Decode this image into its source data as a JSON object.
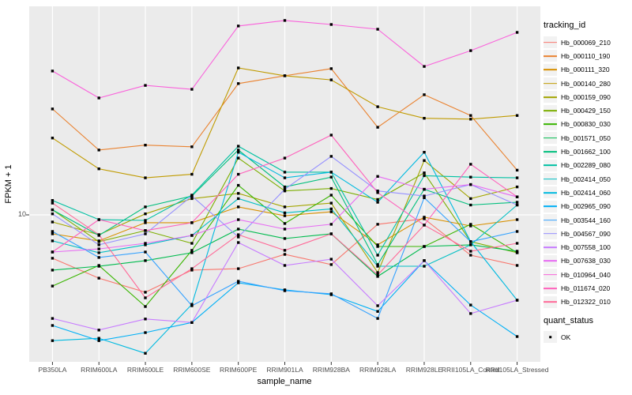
{
  "figure": {
    "background": "#FFFFFF",
    "panel_background": "#EBEBEB",
    "grid_color": "#FFFFFF",
    "point_color": "#000000",
    "tick_text_color": "#4D4D4D"
  },
  "chart_data": {
    "type": "line",
    "xlabel": "sample_name",
    "ylabel": "FPKM + 1",
    "y_axis": {
      "scale": "log10",
      "tick_labels": [
        "10"
      ],
      "tick_values": [
        10
      ],
      "ylim": [
        2.4,
        75
      ]
    },
    "categories": [
      "PB350LA",
      "RRIM600LA",
      "RRIM600LE",
      "RRIM600SE",
      "RRIM600PE",
      "RRIM901LA",
      "RRIM928BA",
      "RRIM928LA",
      "RRIM928LE",
      "RRII105LA_Control",
      "RRII105LA_Stressed"
    ],
    "series": [
      {
        "name": "Hb_000069_210",
        "color": "#F8766D",
        "values": [
          6.58,
          5.43,
          4.74,
          5.87,
          5.95,
          6.83,
          6.19,
          9.13,
          9.63,
          6.78,
          6.14
        ]
      },
      {
        "name": "Hb_000110_190",
        "color": "#EA8331",
        "values": [
          27.8,
          18.7,
          19.6,
          19.3,
          35.5,
          38.3,
          41.0,
          23.3,
          31.9,
          26.1,
          15.4
        ]
      },
      {
        "name": "Hb_000111_320",
        "color": "#D89000",
        "values": [
          8.33,
          7.78,
          9.27,
          9.27,
          10.8,
          9.92,
          10.3,
          7.49,
          9.78,
          8.99,
          9.55
        ]
      },
      {
        "name": "Hb_000140_280",
        "color": "#C09B00",
        "values": [
          21.0,
          15.6,
          14.3,
          14.8,
          41.3,
          38.3,
          36.8,
          28.4,
          25.4,
          25.2,
          26.1
        ]
      },
      {
        "name": "Hb_000159_090",
        "color": "#A3A500",
        "values": [
          9.34,
          8.26,
          10.1,
          11.7,
          12.3,
          10.8,
          11.2,
          5.73,
          16.9,
          11.7,
          13.1
        ]
      },
      {
        "name": "Hb_000429_150",
        "color": "#7CAE00",
        "values": [
          10.5,
          7.72,
          8.59,
          7.6,
          17.3,
          12.6,
          12.9,
          11.6,
          15.0,
          7.72,
          6.94
        ]
      },
      {
        "name": "Hb_000830_030",
        "color": "#39B600",
        "values": [
          5.03,
          6.14,
          4.13,
          7.1,
          13.3,
          9.2,
          12.1,
          7.37,
          7.37,
          9.13,
          6.94
        ]
      },
      {
        "name": "Hb_001571_050",
        "color": "#00BB4E",
        "values": [
          5.87,
          6.09,
          6.43,
          6.94,
          8.72,
          7.96,
          8.33,
          5.52,
          7.37,
          7.49,
          7.04
        ]
      },
      {
        "name": "Hb_001662_100",
        "color": "#00BF7D",
        "values": [
          10.5,
          8.2,
          10.8,
          12.0,
          18.7,
          13.1,
          14.4,
          6.19,
          12.8,
          11.0,
          11.3
        ]
      },
      {
        "name": "Hb_002289_080",
        "color": "#00C1A3",
        "values": [
          11.5,
          9.55,
          9.48,
          12.1,
          19.4,
          15.1,
          15.1,
          6.78,
          14.6,
          14.4,
          14.3
        ]
      },
      {
        "name": "Hb_002414_050",
        "color": "#00BFC4",
        "values": [
          7.78,
          6.94,
          7.49,
          8.2,
          11.7,
          10.2,
          10.6,
          6.09,
          6.09,
          7.49,
          11.0
        ]
      },
      {
        "name": "Hb_002414_060",
        "color": "#00BAE0",
        "values": [
          2.97,
          3.04,
          2.63,
          4.22,
          18.3,
          14.3,
          15.1,
          11.3,
          18.3,
          7.72,
          4.39
        ]
      },
      {
        "name": "Hb_002965_090",
        "color": "#00B0F6",
        "values": [
          3.44,
          2.97,
          3.21,
          3.54,
          5.19,
          4.85,
          4.63,
          3.94,
          6.43,
          4.19,
          3.09
        ]
      },
      {
        "name": "Hb_003544_160",
        "color": "#35A2FF",
        "values": [
          8.52,
          6.63,
          6.99,
          4.16,
          5.27,
          4.81,
          4.67,
          3.68,
          11.8,
          7.72,
          8.52
        ]
      },
      {
        "name": "Hb_004567_090",
        "color": "#9590FF",
        "values": [
          10.1,
          7.49,
          8.33,
          12.0,
          8.08,
          12.8,
          17.6,
          12.6,
          12.0,
          13.4,
          11.0
        ]
      },
      {
        "name": "Hb_007558_100",
        "color": "#C77CFF",
        "values": [
          3.68,
          3.29,
          3.66,
          3.54,
          7.66,
          6.14,
          6.52,
          4.16,
          6.43,
          3.86,
          4.39
        ]
      },
      {
        "name": "Hb_007638_030",
        "color": "#E76BF3",
        "values": [
          6.99,
          7.2,
          7.6,
          8.2,
          9.55,
          8.72,
          9.13,
          14.5,
          12.8,
          13.4,
          11.9
        ]
      },
      {
        "name": "Hb_010964_040",
        "color": "#FA62DB",
        "values": [
          40.1,
          30.9,
          34.9,
          33.6,
          61.9,
          65.3,
          62.8,
          60.0,
          41.9,
          48.8,
          58.2
        ]
      },
      {
        "name": "Hb_011674_020",
        "color": "#FF62BC",
        "values": [
          6.99,
          9.55,
          8.59,
          9.27,
          14.8,
          17.3,
          21.6,
          12.4,
          9.06,
          16.3,
          11.9
        ]
      },
      {
        "name": "Hb_012322_010",
        "color": "#FF6A98",
        "values": [
          11.2,
          8.26,
          4.49,
          5.95,
          8.26,
          7.1,
          8.33,
          5.6,
          9.06,
          7.04,
          7.6
        ]
      }
    ],
    "legend": {
      "title": "tracking_id",
      "quant_title": "quant_status",
      "quant_items": [
        "OK"
      ]
    }
  }
}
